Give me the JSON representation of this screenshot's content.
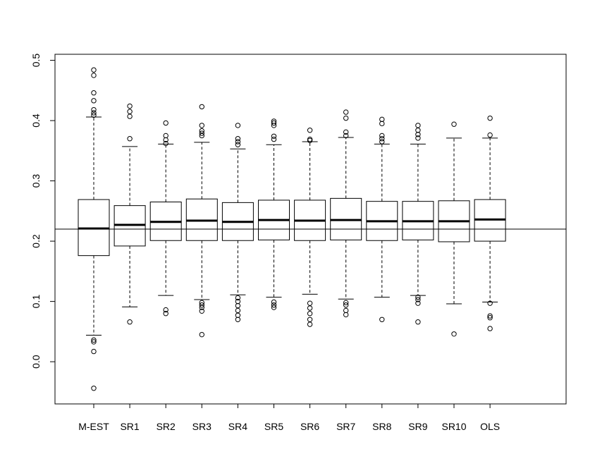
{
  "chart_data": {
    "type": "box",
    "title": "",
    "xlabel": "",
    "ylabel": "",
    "ylim": [
      -0.07,
      0.51
    ],
    "yticks": [
      0.0,
      0.1,
      0.2,
      0.3,
      0.4,
      0.5
    ],
    "ytick_labels": [
      "0.0",
      "0.1",
      "0.2",
      "0.3",
      "0.4",
      "0.5"
    ],
    "reference_line_y": 0.22,
    "grid": false,
    "legend": "none",
    "categories": [
      "M-EST",
      "SR1",
      "SR2",
      "SR3",
      "SR4",
      "SR5",
      "SR6",
      "SR7",
      "SR8",
      "SR9",
      "SR10",
      "OLS"
    ],
    "boxes": [
      {
        "whisker_low": 0.044,
        "q1": 0.176,
        "median": 0.221,
        "q3": 0.269,
        "whisker_high": 0.406,
        "outliers": [
          -0.044,
          0.017,
          0.033,
          0.036,
          0.409,
          0.413,
          0.418,
          0.433,
          0.446,
          0.475,
          0.484
        ]
      },
      {
        "whisker_low": 0.091,
        "q1": 0.192,
        "median": 0.227,
        "q3": 0.259,
        "whisker_high": 0.357,
        "outliers": [
          0.066,
          0.37,
          0.407,
          0.415,
          0.424
        ]
      },
      {
        "whisker_low": 0.11,
        "q1": 0.201,
        "median": 0.232,
        "q3": 0.265,
        "whisker_high": 0.361,
        "outliers": [
          0.08,
          0.086,
          0.362,
          0.368,
          0.375,
          0.396
        ]
      },
      {
        "whisker_low": 0.103,
        "q1": 0.201,
        "median": 0.234,
        "q3": 0.27,
        "whisker_high": 0.364,
        "outliers": [
          0.045,
          0.084,
          0.09,
          0.094,
          0.098,
          0.375,
          0.379,
          0.383,
          0.392,
          0.423
        ]
      },
      {
        "whisker_low": 0.111,
        "q1": 0.201,
        "median": 0.232,
        "q3": 0.264,
        "whisker_high": 0.353,
        "outliers": [
          0.07,
          0.077,
          0.085,
          0.093,
          0.1,
          0.106,
          0.36,
          0.365,
          0.37,
          0.392
        ]
      },
      {
        "whisker_low": 0.107,
        "q1": 0.202,
        "median": 0.235,
        "q3": 0.268,
        "whisker_high": 0.36,
        "outliers": [
          0.09,
          0.094,
          0.099,
          0.369,
          0.374,
          0.392,
          0.396,
          0.399
        ]
      },
      {
        "whisker_low": 0.112,
        "q1": 0.201,
        "median": 0.234,
        "q3": 0.268,
        "whisker_high": 0.365,
        "outliers": [
          0.062,
          0.07,
          0.08,
          0.089,
          0.097,
          0.367,
          0.369,
          0.384
        ]
      },
      {
        "whisker_low": 0.104,
        "q1": 0.202,
        "median": 0.235,
        "q3": 0.271,
        "whisker_high": 0.372,
        "outliers": [
          0.078,
          0.085,
          0.094,
          0.098,
          0.375,
          0.381,
          0.404,
          0.414
        ]
      },
      {
        "whisker_low": 0.107,
        "q1": 0.201,
        "median": 0.233,
        "q3": 0.266,
        "whisker_high": 0.361,
        "outliers": [
          0.07,
          0.365,
          0.37,
          0.375,
          0.395,
          0.402
        ]
      },
      {
        "whisker_low": 0.11,
        "q1": 0.202,
        "median": 0.233,
        "q3": 0.266,
        "whisker_high": 0.361,
        "outliers": [
          0.066,
          0.097,
          0.103,
          0.107,
          0.371,
          0.377,
          0.384,
          0.392
        ]
      },
      {
        "whisker_low": 0.096,
        "q1": 0.199,
        "median": 0.233,
        "q3": 0.267,
        "whisker_high": 0.371,
        "outliers": [
          0.046,
          0.394
        ]
      },
      {
        "whisker_low": 0.099,
        "q1": 0.2,
        "median": 0.236,
        "q3": 0.269,
        "whisker_high": 0.371,
        "outliers": [
          0.055,
          0.073,
          0.076,
          0.097,
          0.376,
          0.404
        ]
      }
    ]
  }
}
